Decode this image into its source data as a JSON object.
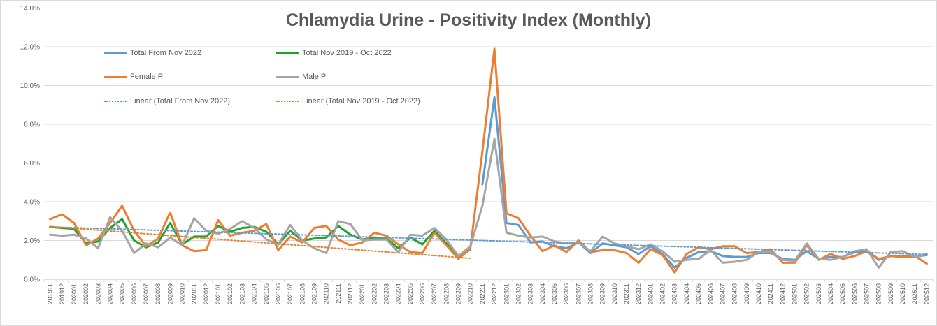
{
  "window": {
    "background": "#FFFFFF",
    "border_color": "#D9D9D9"
  },
  "chart_data": {
    "type": "line",
    "title": "Chlamydia Urine - Positivity Index (Monthly)",
    "title_color": "#595959",
    "axis_text_color": "#595959",
    "gridline_color": "#D9D9D9",
    "axis_line_color": "#BFBFBF",
    "grid": true,
    "legend_position": "top-left-inside",
    "y_axis": {
      "min": 0,
      "max": 14,
      "step": 2,
      "labels": [
        "0.0%",
        "2.0%",
        "4.0%",
        "6.0%",
        "8.0%",
        "10.0%",
        "12.0%",
        "14.0%"
      ]
    },
    "categories": [
      "201911",
      "201912",
      "202001",
      "202002",
      "202003",
      "202004",
      "202005",
      "202006",
      "202007",
      "202008",
      "202009",
      "202010",
      "202011",
      "202012",
      "202101",
      "202102",
      "202103",
      "202104",
      "202105",
      "202106",
      "202107",
      "202108",
      "202109",
      "202110",
      "202111",
      "202112",
      "202201",
      "202202",
      "202203",
      "202204",
      "202205",
      "202206",
      "202207",
      "202208",
      "202209",
      "202210",
      "202211",
      "202212",
      "202301",
      "202302",
      "202303",
      "202304",
      "202305",
      "202306",
      "202307",
      "202308",
      "202309",
      "202310",
      "202311",
      "202312",
      "202401",
      "202402",
      "202403",
      "202404",
      "202405",
      "202406",
      "202407",
      "202408",
      "202409",
      "202410",
      "202411",
      "202412",
      "202501",
      "202502",
      "202503",
      "202504",
      "202505",
      "202506",
      "202507",
      "202508",
      "202509",
      "202510",
      "202511",
      "202512"
    ],
    "series": [
      {
        "name": "Total From Nov 2022",
        "color": "#5B9BD5",
        "values": [
          null,
          null,
          null,
          null,
          null,
          null,
          null,
          null,
          null,
          null,
          null,
          null,
          null,
          null,
          null,
          null,
          null,
          null,
          null,
          null,
          null,
          null,
          null,
          null,
          null,
          null,
          null,
          null,
          null,
          null,
          null,
          null,
          null,
          null,
          null,
          null,
          4.9,
          9.4,
          2.9,
          2.8,
          1.9,
          1.95,
          1.7,
          1.6,
          1.9,
          1.35,
          1.85,
          1.75,
          1.65,
          1.3,
          1.7,
          1.3,
          0.6,
          1.1,
          1.4,
          1.45,
          1.2,
          1.15,
          1.15,
          1.35,
          1.35,
          1.05,
          1.0,
          1.45,
          1.05,
          1.15,
          1.15,
          1.4,
          1.5,
          1.0,
          1.2,
          1.2,
          1.15,
          1.25
        ]
      },
      {
        "name": "Total Nov 2019 - Oct 2022",
        "color": "#1FA32B",
        "values": [
          2.7,
          2.65,
          2.6,
          1.85,
          1.95,
          2.65,
          3.1,
          2.0,
          1.65,
          1.9,
          2.9,
          1.8,
          2.2,
          2.2,
          2.75,
          2.45,
          2.65,
          2.7,
          2.45,
          1.8,
          2.5,
          2.0,
          2.1,
          2.15,
          2.75,
          2.3,
          2.05,
          2.15,
          2.1,
          1.6,
          2.15,
          1.8,
          2.5,
          1.85,
          1.1,
          1.55,
          null,
          null,
          null,
          null,
          null,
          null,
          null,
          null,
          null,
          null,
          null,
          null,
          null,
          null,
          null,
          null,
          null,
          null,
          null,
          null,
          null,
          null,
          null,
          null,
          null,
          null,
          null,
          null,
          null,
          null,
          null,
          null,
          null,
          null,
          null,
          null,
          null,
          null
        ]
      },
      {
        "name": "Female P",
        "color": "#ED7D31",
        "values": [
          3.1,
          3.35,
          2.9,
          1.75,
          2.1,
          2.9,
          3.8,
          2.5,
          1.7,
          2.1,
          3.45,
          1.75,
          1.45,
          1.5,
          3.05,
          2.25,
          2.4,
          2.5,
          2.85,
          1.5,
          2.2,
          1.9,
          2.65,
          2.75,
          2.05,
          1.75,
          1.9,
          2.4,
          2.25,
          1.8,
          1.4,
          1.35,
          2.4,
          1.75,
          1.05,
          1.6,
          6.6,
          11.9,
          3.4,
          3.15,
          2.25,
          1.45,
          1.75,
          1.4,
          2.0,
          1.4,
          1.5,
          1.5,
          1.35,
          0.85,
          1.55,
          1.25,
          0.35,
          1.3,
          1.65,
          1.55,
          1.7,
          1.7,
          1.35,
          1.4,
          1.55,
          0.85,
          0.85,
          1.75,
          1.0,
          1.3,
          1.05,
          1.2,
          1.45,
          1.05,
          1.2,
          1.15,
          1.2,
          0.8
        ]
      },
      {
        "name": "Male P",
        "color": "#A5A5A5",
        "values": [
          2.3,
          2.25,
          2.3,
          2.1,
          1.6,
          3.2,
          2.5,
          1.35,
          1.85,
          1.65,
          2.15,
          1.75,
          3.15,
          2.5,
          2.35,
          2.6,
          3.0,
          2.65,
          2.05,
          1.8,
          2.8,
          2.0,
          1.6,
          1.35,
          3.0,
          2.85,
          2.0,
          2.05,
          2.05,
          1.4,
          2.3,
          2.25,
          2.65,
          2.05,
          1.2,
          1.7,
          3.8,
          7.25,
          2.4,
          2.25,
          2.15,
          2.2,
          1.95,
          1.85,
          1.9,
          1.45,
          2.2,
          1.85,
          1.7,
          1.55,
          1.8,
          1.45,
          0.9,
          1.0,
          1.05,
          1.5,
          0.85,
          0.9,
          1.0,
          1.4,
          1.4,
          1.0,
          0.95,
          1.85,
          1.05,
          1.0,
          1.15,
          1.45,
          1.55,
          0.6,
          1.4,
          1.45,
          1.15,
          1.3
        ]
      }
    ],
    "trendlines": [
      {
        "name": "Linear (Total From Nov 2022)",
        "color": "#5B9BD5",
        "start_index": 0,
        "end_index": 73,
        "start_value": 2.7,
        "end_value": 1.28
      },
      {
        "name": "Linear (Total Nov 2019 - Oct 2022)",
        "color": "#ED7D31",
        "start_index": 0,
        "end_index": 35,
        "start_value": 2.72,
        "end_value": 1.08
      }
    ],
    "legend": {
      "items": [
        {
          "label": "Total From Nov 2022",
          "style": "solid",
          "color": "#5B9BD5"
        },
        {
          "label": "Total Nov 2019 - Oct 2022",
          "style": "solid",
          "color": "#1FA32B"
        },
        {
          "label": "Female P",
          "style": "solid",
          "color": "#ED7D31"
        },
        {
          "label": "Male P",
          "style": "solid",
          "color": "#A5A5A5"
        },
        {
          "label": "Linear (Total From Nov 2022)",
          "style": "dotted",
          "color": "#5B9BD5"
        },
        {
          "label": "Linear (Total Nov 2019 - Oct 2022)",
          "style": "dotted",
          "color": "#ED7D31"
        }
      ]
    }
  }
}
